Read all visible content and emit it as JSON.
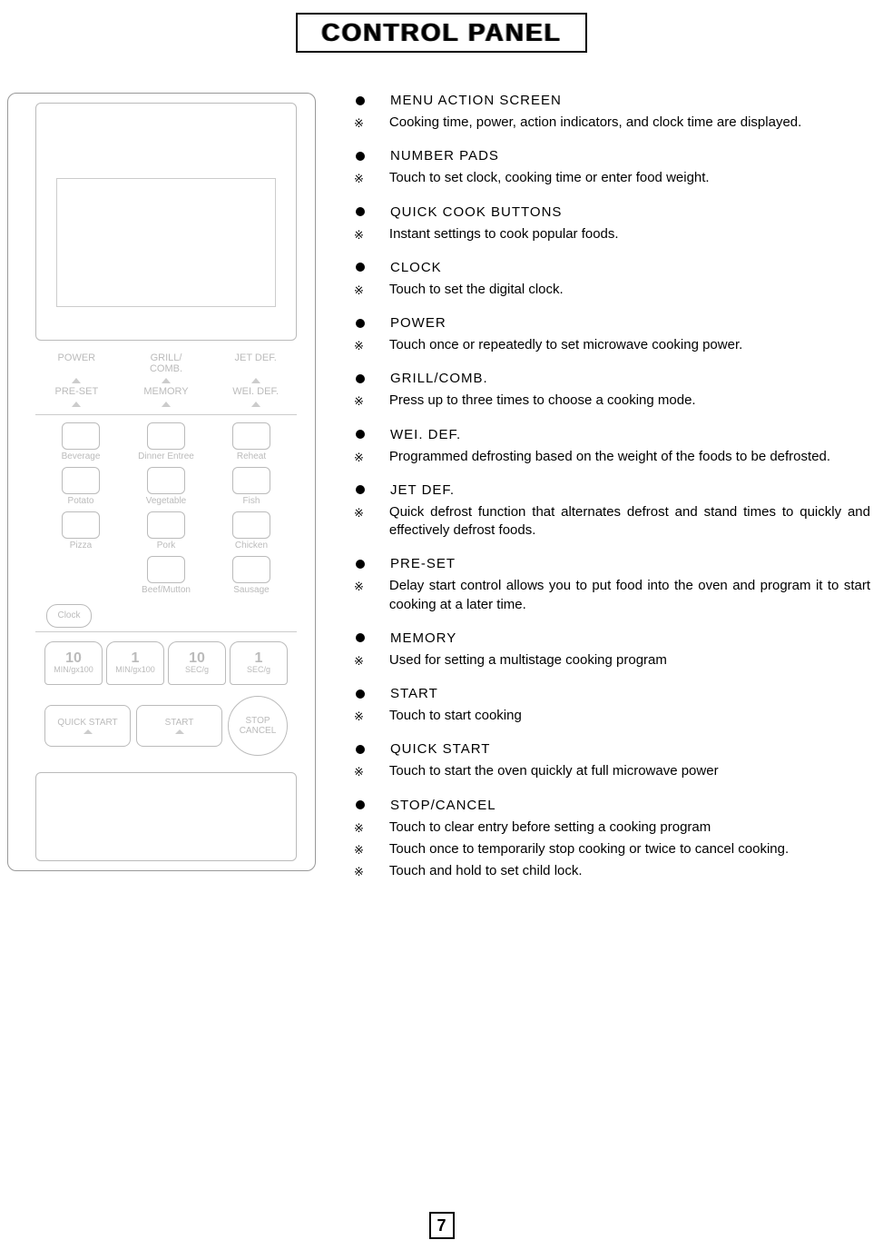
{
  "title": "CONTROL PANEL",
  "page_number": "7",
  "panel": {
    "func_buttons": [
      "POWER",
      "GRILL/\nCOMB.",
      "JET DEF.",
      "PRE-SET",
      "MEMORY",
      "WEI. DEF."
    ],
    "cook_buttons": [
      "Beverage",
      "Dinner Entree",
      "Reheat",
      "Potato",
      "Vegetable",
      "Fish",
      "Pizza",
      "Pork",
      "Chicken",
      "",
      "Beef/Mutton",
      "Sausage"
    ],
    "clock": "Clock",
    "num_buttons": [
      {
        "big": "10",
        "small": "MIN/gx100"
      },
      {
        "big": "1",
        "small": "MIN/gx100"
      },
      {
        "big": "10",
        "small": "SEC/g"
      },
      {
        "big": "1",
        "small": "SEC/g"
      }
    ],
    "actions": {
      "quick": "QUICK START",
      "start": "START",
      "stop_l1": "STOP",
      "stop_l2": "CANCEL"
    }
  },
  "sections": [
    {
      "title": "MENU ACTION SCREEN",
      "lines": [
        "Cooking time, power, action indicators, and clock time are displayed."
      ]
    },
    {
      "title": "NUMBER PADS",
      "lines": [
        "Touch to set clock, cooking time or enter food weight."
      ]
    },
    {
      "title": "QUICK COOK BUTTONS",
      "lines": [
        "Instant settings to cook popular foods."
      ]
    },
    {
      "title": "CLOCK",
      "lines": [
        "Touch to set the digital clock."
      ]
    },
    {
      "title": "POWER",
      "lines": [
        "Touch once or repeatedly to set microwave cooking power."
      ]
    },
    {
      "title": "GRILL/COMB.",
      "lines": [
        "Press up to three times to choose a cooking mode."
      ]
    },
    {
      "title": "WEI. DEF.",
      "lines": [
        "Programmed defrosting based on the weight of the foods to be defrosted."
      ]
    },
    {
      "title": "JET DEF.",
      "lines": [
        "Quick defrost function that alternates defrost and stand times to quickly and effectively defrost foods."
      ]
    },
    {
      "title": "PRE-SET",
      "lines": [
        "Delay start control allows you to put food into the oven and program it to start cooking at a later time."
      ]
    },
    {
      "title": "MEMORY",
      "lines": [
        "Used for setting a multistage cooking program"
      ]
    },
    {
      "title": "START",
      "lines": [
        "Touch to start cooking"
      ]
    },
    {
      "title": "QUICK START",
      "lines": [
        "Touch to start the oven quickly at full microwave power"
      ]
    },
    {
      "title": "STOP/CANCEL",
      "lines": [
        "Touch to clear entry before setting a cooking program",
        "Touch once to temporarily stop cooking or twice to cancel cooking.",
        "Touch and hold to set child lock."
      ]
    }
  ]
}
